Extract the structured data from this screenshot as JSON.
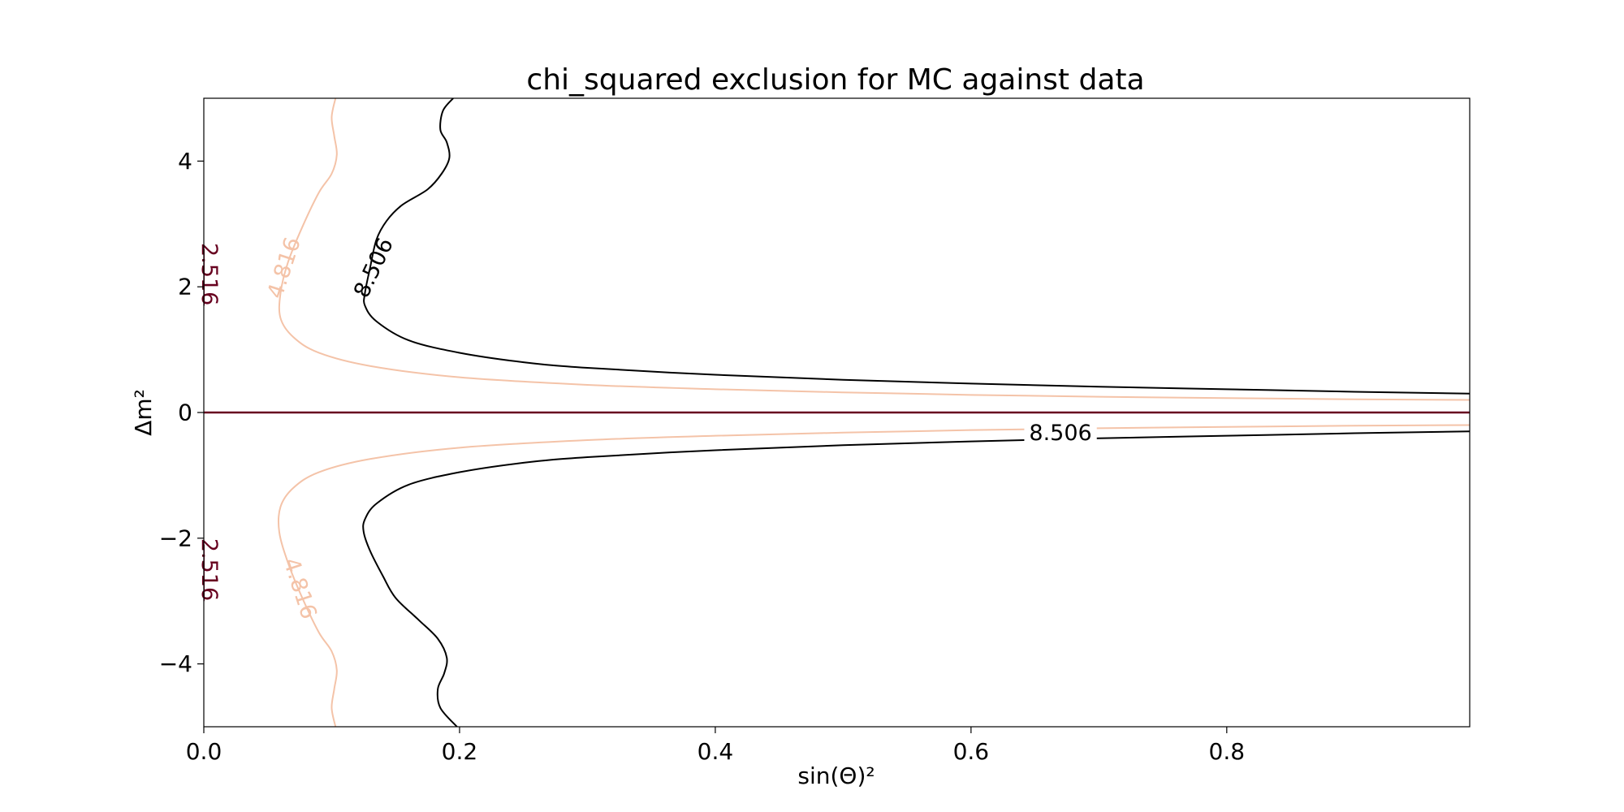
{
  "chart_data": {
    "type": "contour",
    "title": "chi_squared exclusion for MC against data",
    "xlabel": "sin(Θ)²",
    "ylabel": "Δm²",
    "xlim": [
      0.0,
      0.99
    ],
    "ylim": [
      -5,
      5
    ],
    "xticks": [
      {
        "value": 0.0,
        "label": "0.0"
      },
      {
        "value": 0.2,
        "label": "0.2"
      },
      {
        "value": 0.4,
        "label": "0.4"
      },
      {
        "value": 0.6,
        "label": "0.6"
      },
      {
        "value": 0.8,
        "label": "0.8"
      }
    ],
    "yticks": [
      {
        "value": -4,
        "label": "−4"
      },
      {
        "value": -2,
        "label": "−2"
      },
      {
        "value": 0,
        "label": "0"
      },
      {
        "value": 2,
        "label": "2"
      },
      {
        "value": 4,
        "label": "4"
      }
    ],
    "grid": false,
    "legend": "none",
    "levels": [
      {
        "level": "2.516",
        "color": "#67001f",
        "curves": [
          [
            [
              0.0,
              0.0
            ],
            [
              0.99,
              0.0
            ]
          ],
          [
            [
              0.0,
              2.6
            ],
            [
              0.0,
              1.7
            ]
          ],
          [
            [
              0.0,
              -2.1
            ],
            [
              0.0,
              -3.0
            ]
          ]
        ],
        "labels": [
          {
            "text": "2.516",
            "x": 0.004,
            "y": 2.2,
            "angle": 90
          },
          {
            "text": "2.516",
            "x": 0.004,
            "y": -2.5,
            "angle": 90
          }
        ]
      },
      {
        "level": "4.816",
        "color": "#f4c3a8",
        "curves": [
          [
            [
              0.103,
              5.0
            ],
            [
              0.1,
              4.7
            ],
            [
              0.102,
              4.4
            ],
            [
              0.104,
              4.1
            ],
            [
              0.1,
              3.8
            ],
            [
              0.09,
              3.5
            ],
            [
              0.077,
              2.95
            ],
            [
              0.066,
              2.4
            ],
            [
              0.06,
              1.9
            ],
            [
              0.06,
              1.5
            ],
            [
              0.07,
              1.2
            ],
            [
              0.09,
              0.95
            ],
            [
              0.13,
              0.74
            ],
            [
              0.2,
              0.56
            ],
            [
              0.3,
              0.44
            ],
            [
              0.4,
              0.37
            ],
            [
              0.5,
              0.32
            ],
            [
              0.6,
              0.28
            ],
            [
              0.7,
              0.25
            ],
            [
              0.8,
              0.23
            ],
            [
              0.9,
              0.21
            ],
            [
              0.99,
              0.2
            ]
          ],
          [
            [
              0.99,
              -0.2
            ],
            [
              0.9,
              -0.21
            ],
            [
              0.8,
              -0.23
            ],
            [
              0.7,
              -0.25
            ],
            [
              0.6,
              -0.28
            ],
            [
              0.5,
              -0.32
            ],
            [
              0.4,
              -0.37
            ],
            [
              0.3,
              -0.44
            ],
            [
              0.2,
              -0.56
            ],
            [
              0.13,
              -0.74
            ],
            [
              0.09,
              -0.95
            ],
            [
              0.07,
              -1.2
            ],
            [
              0.06,
              -1.5
            ],
            [
              0.059,
              -1.9
            ],
            [
              0.066,
              -2.4
            ],
            [
              0.077,
              -2.95
            ],
            [
              0.09,
              -3.5
            ],
            [
              0.1,
              -3.8
            ],
            [
              0.104,
              -4.1
            ],
            [
              0.102,
              -4.4
            ],
            [
              0.1,
              -4.7
            ],
            [
              0.103,
              -5.0
            ]
          ]
        ],
        "labels": [
          {
            "text": "4.816",
            "x": 0.063,
            "y": 2.3,
            "angle": -72
          },
          {
            "text": "4.816",
            "x": 0.075,
            "y": -2.8,
            "angle": 72
          }
        ]
      },
      {
        "level": "8.506",
        "color": "#000000",
        "curves": [
          [
            [
              0.195,
              5.0
            ],
            [
              0.187,
              4.8
            ],
            [
              0.185,
              4.5
            ],
            [
              0.19,
              4.3
            ],
            [
              0.192,
              4.05
            ],
            [
              0.186,
              3.8
            ],
            [
              0.175,
              3.55
            ],
            [
              0.155,
              3.3
            ],
            [
              0.143,
              3.05
            ],
            [
              0.135,
              2.75
            ],
            [
              0.13,
              2.3
            ],
            [
              0.126,
              1.9
            ],
            [
              0.126,
              1.7
            ],
            [
              0.135,
              1.45
            ],
            [
              0.16,
              1.15
            ],
            [
              0.2,
              0.95
            ],
            [
              0.25,
              0.8
            ],
            [
              0.3,
              0.71
            ],
            [
              0.4,
              0.6
            ],
            [
              0.5,
              0.52
            ],
            [
              0.6,
              0.46
            ],
            [
              0.7,
              0.41
            ],
            [
              0.8,
              0.37
            ],
            [
              0.9,
              0.33
            ],
            [
              0.99,
              0.3
            ]
          ],
          [
            [
              0.99,
              -0.3
            ],
            [
              0.9,
              -0.33
            ],
            [
              0.8,
              -0.37
            ],
            [
              0.7,
              -0.41
            ],
            [
              0.6,
              -0.46
            ],
            [
              0.5,
              -0.52
            ],
            [
              0.4,
              -0.6
            ],
            [
              0.3,
              -0.71
            ],
            [
              0.25,
              -0.8
            ],
            [
              0.2,
              -0.95
            ],
            [
              0.16,
              -1.15
            ],
            [
              0.135,
              -1.45
            ],
            [
              0.126,
              -1.7
            ],
            [
              0.125,
              -1.9
            ],
            [
              0.13,
              -2.2
            ],
            [
              0.14,
              -2.6
            ],
            [
              0.15,
              -2.95
            ],
            [
              0.168,
              -3.3
            ],
            [
              0.183,
              -3.6
            ],
            [
              0.19,
              -3.9
            ],
            [
              0.188,
              -4.15
            ],
            [
              0.183,
              -4.4
            ],
            [
              0.185,
              -4.7
            ],
            [
              0.198,
              -5.0
            ]
          ]
        ],
        "labels": [
          {
            "text": "8.506",
            "x": 0.133,
            "y": 2.3,
            "angle": -65
          },
          {
            "text": "8.506",
            "x": 0.67,
            "y": -0.33,
            "angle": 0
          }
        ]
      }
    ]
  }
}
